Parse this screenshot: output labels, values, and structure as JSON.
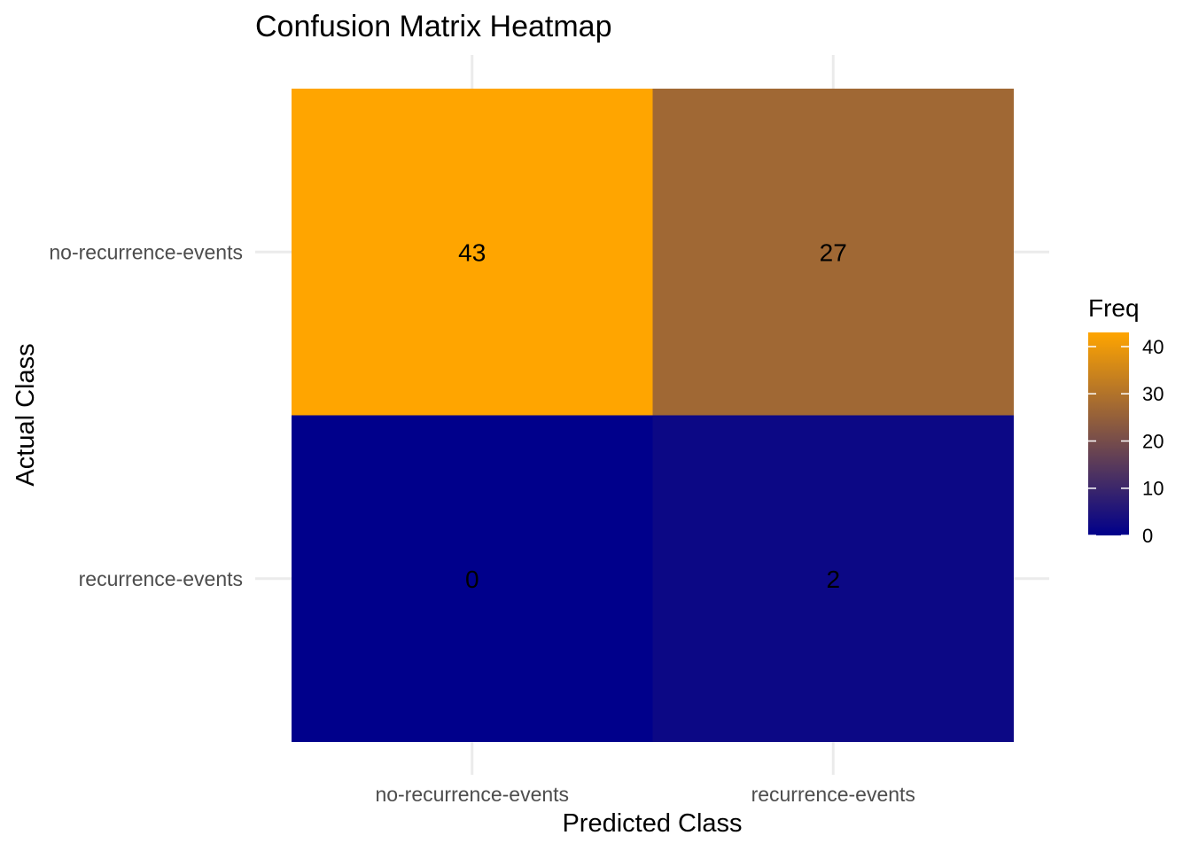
{
  "chart_data": {
    "type": "heatmap",
    "title": "Confusion Matrix Heatmap",
    "xlabel": "Predicted Class",
    "ylabel": "Actual Class",
    "x_categories": [
      "no-recurrence-events",
      "recurrence-events"
    ],
    "y_categories": [
      "no-recurrence-events",
      "recurrence-events"
    ],
    "cells": [
      {
        "actual": "no-recurrence-events",
        "predicted": "no-recurrence-events",
        "value": 43
      },
      {
        "actual": "no-recurrence-events",
        "predicted": "recurrence-events",
        "value": 27
      },
      {
        "actual": "recurrence-events",
        "predicted": "no-recurrence-events",
        "value": 0
      },
      {
        "actual": "recurrence-events",
        "predicted": "recurrence-events",
        "value": 2
      }
    ],
    "color_scale": {
      "low": "#00008b",
      "high": "#ffa500",
      "min": 0,
      "max": 43
    },
    "legend": {
      "title": "Freq",
      "ticks": [
        0,
        10,
        20,
        30,
        40
      ],
      "placement": "right"
    },
    "grid": true
  }
}
